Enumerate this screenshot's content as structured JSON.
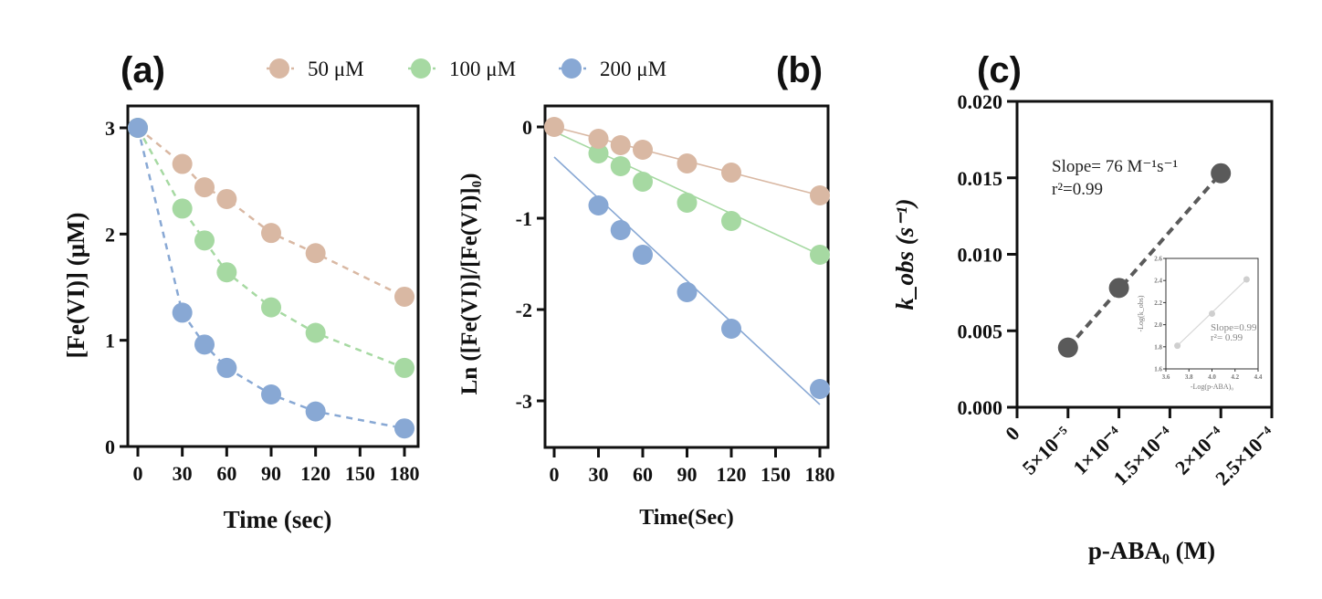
{
  "legend": {
    "position": "top-center",
    "entries": [
      {
        "label": "50 μM",
        "color": "#d9b8a3"
      },
      {
        "label": "100 μM",
        "color": "#a6d9a2"
      },
      {
        "label": "200 μM",
        "color": "#88a8d4"
      }
    ]
  },
  "chart_data": [
    {
      "panel": "(a)",
      "type": "line",
      "line_style": "dashed",
      "xlabel": "Time (sec)",
      "ylabel": "[Fe(VI)] (μM)",
      "xlim": [
        0,
        180
      ],
      "ylim": [
        0,
        3
      ],
      "xticks": [
        0,
        30,
        60,
        90,
        120,
        150,
        180
      ],
      "yticks": [
        0,
        1,
        2,
        3
      ],
      "grid": false,
      "x": [
        0,
        30,
        45,
        60,
        90,
        120,
        180
      ],
      "series": [
        {
          "name": "50 μM",
          "color": "#d9b8a3",
          "values": [
            3.0,
            2.66,
            2.44,
            2.33,
            2.01,
            1.82,
            1.41
          ]
        },
        {
          "name": "100 μM",
          "color": "#a6d9a2",
          "values": [
            3.0,
            2.24,
            1.94,
            1.64,
            1.31,
            1.07,
            0.74
          ]
        },
        {
          "name": "200 μM",
          "color": "#88a8d4",
          "values": [
            3.0,
            1.26,
            0.96,
            0.74,
            0.49,
            0.33,
            0.17
          ]
        }
      ]
    },
    {
      "panel": "(b)",
      "type": "scatter",
      "fit": "linear",
      "xlabel": "Time(Sec)",
      "ylabel": "Ln ([Fe(VI)]/[Fe(VI)]₀)",
      "xlim": [
        0,
        180
      ],
      "ylim": [
        -3.5,
        0.2
      ],
      "xticks": [
        0,
        30,
        60,
        90,
        120,
        150,
        180
      ],
      "yticks": [
        0,
        -1,
        -2,
        -3
      ],
      "grid": false,
      "series": [
        {
          "name": "50 μM",
          "color": "#d9b8a3",
          "x": [
            0,
            30,
            45,
            60,
            90,
            120,
            180
          ],
          "values": [
            0,
            -0.13,
            -0.2,
            -0.25,
            -0.4,
            -0.5,
            -0.75
          ],
          "fit": [
            [
              0,
              0
            ],
            [
              180,
              -0.75
            ]
          ]
        },
        {
          "name": "100 μM",
          "color": "#a6d9a2",
          "x": [
            30,
            45,
            60,
            90,
            120,
            180
          ],
          "values": [
            -0.29,
            -0.43,
            -0.6,
            -0.83,
            -1.03,
            -1.4
          ],
          "fit": [
            [
              0,
              -0.05
            ],
            [
              180,
              -1.4
            ]
          ]
        },
        {
          "name": "200 μM",
          "color": "#88a8d4",
          "x": [
            30,
            45,
            60,
            90,
            120,
            180
          ],
          "values": [
            -0.86,
            -1.13,
            -1.4,
            -1.81,
            -2.21,
            -2.87
          ],
          "fit": [
            [
              0,
              -0.33
            ],
            [
              180,
              -3.04
            ]
          ]
        }
      ]
    },
    {
      "panel": "(c)",
      "type": "scatter",
      "fit": "linear-dashed",
      "xlabel": "p-ABA₀ (M)",
      "ylabel": "k_obs (s⁻¹)",
      "xlim": [
        0,
        0.00025
      ],
      "ylim": [
        0,
        0.02
      ],
      "xticks": [
        0,
        5e-05,
        0.0001,
        0.00015,
        0.0002,
        0.00025
      ],
      "xtick_labels": [
        "0",
        "5×10⁻⁵",
        "1×10⁻⁴",
        "1.5×10⁻⁴",
        "2×10⁻⁴",
        "2.5×10⁻⁴"
      ],
      "yticks": [
        0,
        0.005,
        0.01,
        0.015,
        0.02
      ],
      "ytick_labels": [
        "0.000",
        "0.005",
        "0.010",
        "0.015",
        "0.020"
      ],
      "grid": false,
      "series": [
        {
          "name": "k_obs",
          "color": "#5a5a5a",
          "x": [
            5e-05,
            0.0001,
            0.0002
          ],
          "values": [
            0.0039,
            0.0078,
            0.0153
          ]
        }
      ],
      "annotation": {
        "slope": "Slope= 76 M⁻¹s⁻¹",
        "r2": "r²=0.99"
      },
      "inset": {
        "type": "scatter",
        "xlabel": "-Log(p-ABA)₀",
        "ylabel": "-Log(k_obs)",
        "xlim": [
          3.6,
          4.4
        ],
        "ylim": [
          1.6,
          2.6
        ],
        "xticks": [
          3.6,
          3.8,
          4.0,
          4.2,
          4.4
        ],
        "xtick_labels": [
          "3.6",
          "3.8",
          "4.0",
          "4.2",
          "4.4"
        ],
        "yticks": [
          1.6,
          1.8,
          2.0,
          2.2,
          2.4,
          2.6
        ],
        "ytick_labels": [
          "1.6",
          "1.8",
          "2.0",
          "2.2",
          "2.4",
          "2.6"
        ],
        "color": "#cfcfcf",
        "x": [
          3.7,
          4.0,
          4.3
        ],
        "values": [
          1.81,
          2.1,
          2.41
        ],
        "annotation": {
          "slope": "Slope=0.99",
          "r2": "r²= 0.99"
        }
      }
    }
  ]
}
